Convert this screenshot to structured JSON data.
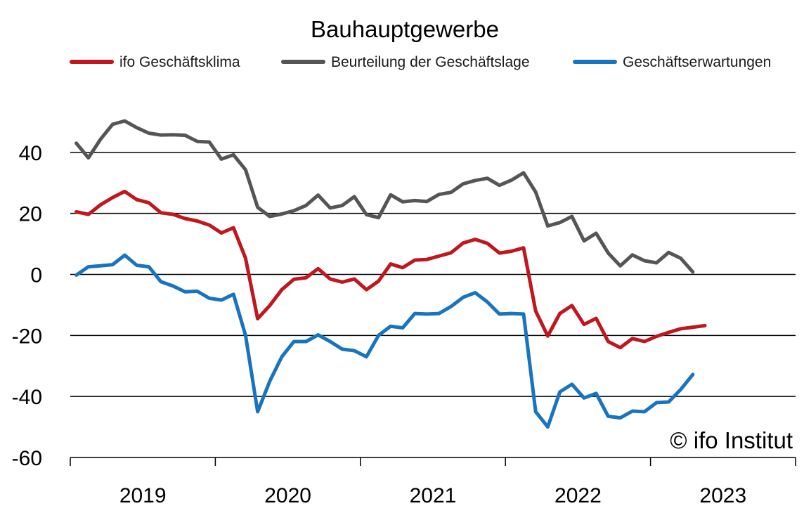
{
  "chart_data": {
    "type": "line",
    "title": "Bauhauptgewerbe",
    "xlabel": "",
    "ylabel": "",
    "ylim": [
      -60,
      60
    ],
    "yticks": [
      40,
      20,
      0,
      -20,
      -40,
      -60
    ],
    "year_labels": [
      "2019",
      "2020",
      "2021",
      "2022",
      "2023"
    ],
    "x_range": [
      "2019-01",
      "2023-12"
    ],
    "grid": "horizontal",
    "legend_position": "top",
    "copyright": "© ifo Institut",
    "x": [
      "2019-01",
      "2019-02",
      "2019-03",
      "2019-04",
      "2019-05",
      "2019-06",
      "2019-07",
      "2019-08",
      "2019-09",
      "2019-10",
      "2019-11",
      "2019-12",
      "2020-01",
      "2020-02",
      "2020-03",
      "2020-04",
      "2020-05",
      "2020-06",
      "2020-07",
      "2020-08",
      "2020-09",
      "2020-10",
      "2020-11",
      "2020-12",
      "2021-01",
      "2021-02",
      "2021-03",
      "2021-04",
      "2021-05",
      "2021-06",
      "2021-07",
      "2021-08",
      "2021-09",
      "2021-10",
      "2021-11",
      "2021-12",
      "2022-01",
      "2022-02",
      "2022-03",
      "2022-04",
      "2022-05",
      "2022-06",
      "2022-07",
      "2022-08",
      "2022-09",
      "2022-10",
      "2022-11",
      "2022-12",
      "2023-01",
      "2023-02",
      "2023-03",
      "2023-04",
      "2023-05"
    ],
    "series": [
      {
        "name": "ifo Geschäftsklima",
        "color": "#c0161e",
        "values": [
          20.5,
          19.7,
          22.8,
          25.2,
          27.2,
          24.5,
          23.5,
          20.2,
          19.7,
          18.3,
          17.5,
          16.2,
          13.6,
          15.3,
          5.3,
          -14.5,
          -10.2,
          -5.0,
          -1.6,
          -1.1,
          1.9,
          -1.5,
          -2.5,
          -1.5,
          -5.0,
          -2.2,
          3.4,
          2.2,
          4.7,
          4.9,
          6.0,
          7.1,
          10.3,
          11.5,
          10.2,
          7.0,
          7.6,
          8.7,
          -12.0,
          -20.2,
          -12.8,
          -10.2,
          -16.4,
          -14.4,
          -22.0,
          -24.0,
          -21.0,
          -22.0,
          -20.3,
          -19.0,
          -17.8,
          -17.3,
          -16.8
        ]
      },
      {
        "name": "Beurteilung der Geschäftslage",
        "color": "#555555",
        "values": [
          43.0,
          38.2,
          44.3,
          49.2,
          50.3,
          48.1,
          46.3,
          45.7,
          45.8,
          45.6,
          43.6,
          43.4,
          37.8,
          39.2,
          34.3,
          22.0,
          19.0,
          19.8,
          20.9,
          22.6,
          26.0,
          21.8,
          22.6,
          25.5,
          19.6,
          18.6,
          26.1,
          23.8,
          24.2,
          23.9,
          26.2,
          26.9,
          29.7,
          30.8,
          31.5,
          29.2,
          30.9,
          33.3,
          27.0,
          15.9,
          17.0,
          19.0,
          11.0,
          13.5,
          7.0,
          2.8,
          6.4,
          4.5,
          3.8,
          7.2,
          5.3,
          0.8,
          null
        ]
      },
      {
        "name": "Geschäftserwartungen",
        "color": "#1874be",
        "values": [
          -0.2,
          2.5,
          2.8,
          3.2,
          6.3,
          3.0,
          2.5,
          -2.4,
          -3.8,
          -5.7,
          -5.5,
          -7.8,
          -8.4,
          -6.5,
          -20.0,
          -45.0,
          -35.0,
          -27.0,
          -22.0,
          -22.0,
          -19.8,
          -22.0,
          -24.5,
          -25.0,
          -27.0,
          -20.0,
          -17.0,
          -17.5,
          -12.8,
          -13.0,
          -12.8,
          -10.5,
          -7.5,
          -6.0,
          -9.0,
          -13.0,
          -12.8,
          -13.0,
          -45.0,
          -50.0,
          -38.5,
          -36.0,
          -40.5,
          -39.0,
          -46.5,
          -47.0,
          -44.8,
          -45.0,
          -42.0,
          -41.8,
          -37.7,
          -32.8,
          null
        ]
      }
    ]
  }
}
